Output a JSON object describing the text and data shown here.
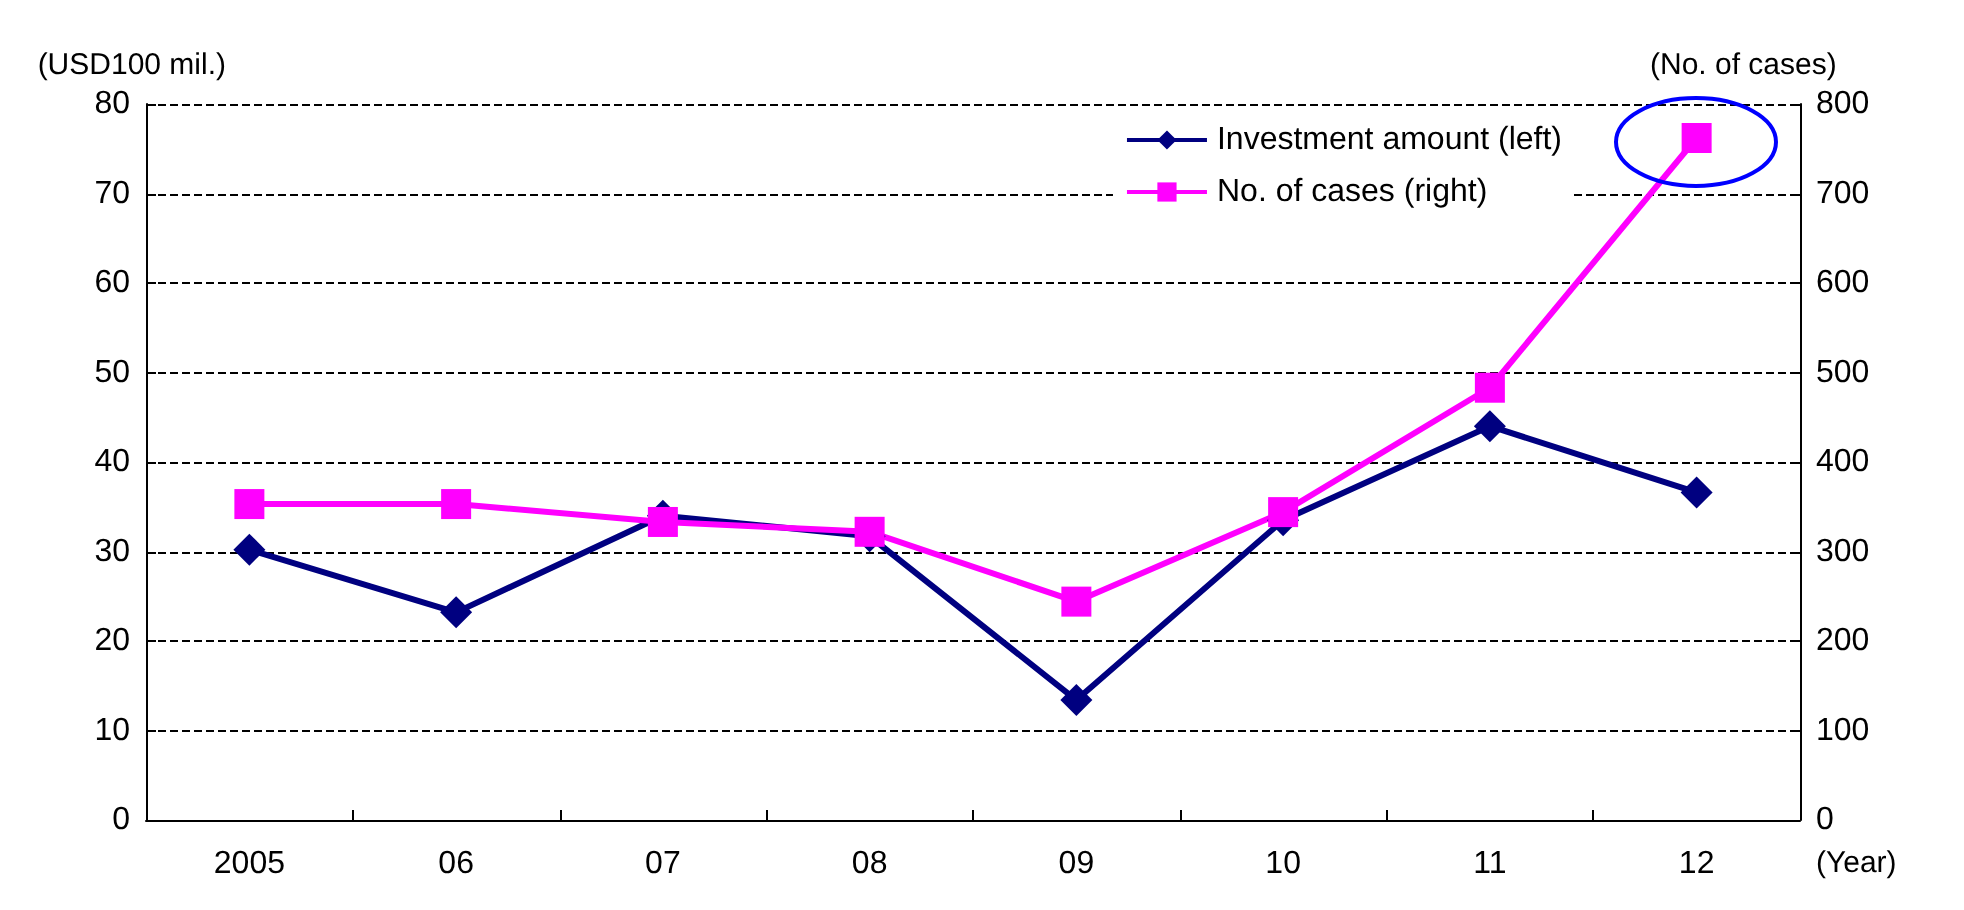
{
  "chart_data": {
    "type": "line",
    "ylabel": "(USD100 mil.)",
    "y2label": "(No. of cases)",
    "xlabel": "(Year)",
    "categories": [
      "2005",
      "06",
      "07",
      "08",
      "09",
      "10",
      "11",
      "12"
    ],
    "series": [
      {
        "name": "Investment amount (left)",
        "color": "#000080",
        "marker": "diamond",
        "values": [
          30.2,
          23.2,
          34.0,
          31.7,
          13.4,
          33.5,
          44.0,
          36.6
        ]
      },
      {
        "name": "No. of cases (right)",
        "color": "#ff00ff",
        "marker": "square",
        "axis": "y2",
        "values": [
          353,
          353,
          333,
          322,
          244,
          344,
          483,
          762
        ]
      }
    ],
    "ylim": [
      0,
      80
    ],
    "yticks": [
      0,
      10,
      20,
      30,
      40,
      50,
      60,
      70,
      80
    ],
    "y2lim": [
      0,
      800
    ],
    "y2ticks": [
      0,
      100,
      200,
      300,
      400,
      500,
      600,
      700,
      800
    ],
    "grid": "y",
    "legend": "top right",
    "line_style": "solid"
  }
}
